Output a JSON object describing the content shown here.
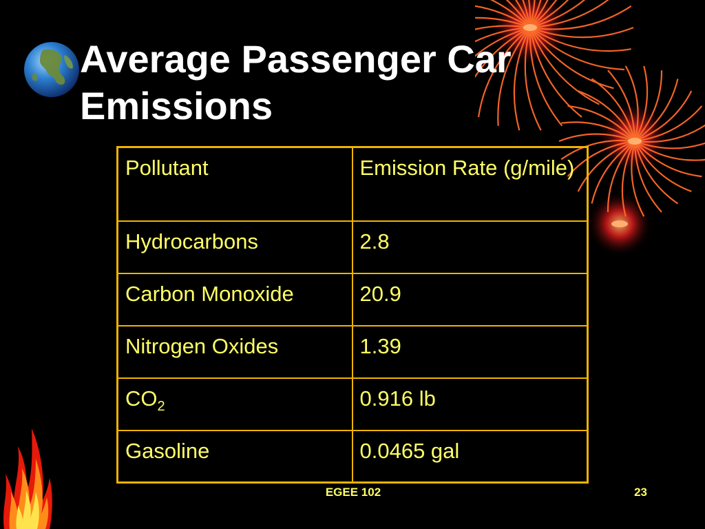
{
  "slide": {
    "title_line1": "Average Passenger Car",
    "title_line2": "Emissions",
    "colors": {
      "background": "#000000",
      "title": "#ffffff",
      "table_text": "#ffff66",
      "table_border": "#f0b400"
    }
  },
  "table": {
    "headers": [
      "Pollutant",
      "Emission Rate (g/mile)"
    ],
    "rows": [
      {
        "pollutant": "Hydrocarbons",
        "rate": "2.8"
      },
      {
        "pollutant": "Carbon Monoxide",
        "rate": "20.9"
      },
      {
        "pollutant": "Nitrogen Oxides",
        "rate": "1.39"
      },
      {
        "pollutant": "CO",
        "pollutant_subscript": "2",
        "rate": "0.916 lb"
      },
      {
        "pollutant": "Gasoline",
        "rate": "0.0465 gal"
      }
    ]
  },
  "footer": {
    "course": "EGEE 102",
    "page_number": "23"
  },
  "icons": {
    "globe": "globe-icon",
    "fireworks": "fireworks-decoration",
    "flames": "flames-decoration"
  }
}
